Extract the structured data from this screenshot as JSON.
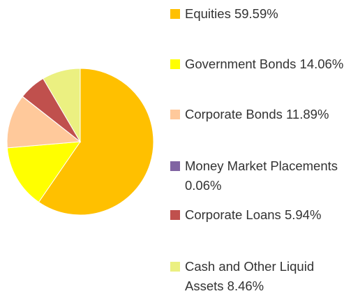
{
  "chart_data": {
    "type": "pie",
    "categories": [
      "Equities",
      "Government Bonds",
      "Corporate Bonds",
      "Money Market Placements",
      "Corporate Loans",
      "Cash and Other Liquid Assets"
    ],
    "values": [
      59.59,
      14.06,
      11.89,
      0.06,
      5.94,
      8.46
    ],
    "value_labels": [
      "59.59%",
      "14.06%",
      "11.89%",
      "0.06%",
      "5.94%",
      "8.46%"
    ],
    "colors": [
      "#ffc000",
      "#ffff00",
      "#ffc99b",
      "#8064a2",
      "#c0504d",
      "#ebf081"
    ]
  }
}
